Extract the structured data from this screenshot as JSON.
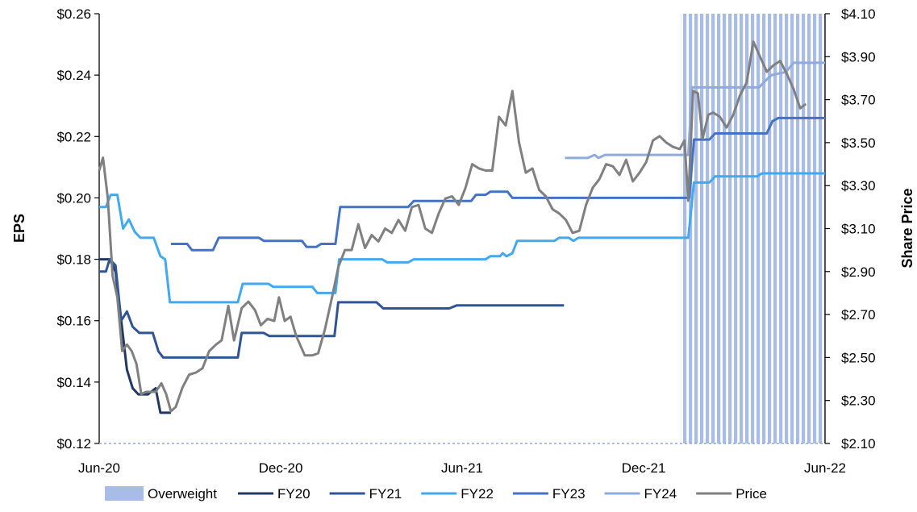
{
  "chart_data": {
    "type": "line",
    "title": "",
    "xlabel": "",
    "ylabel": "EPS",
    "y2label": "Share Price",
    "x_ticks": [
      "Jun-20",
      "Dec-20",
      "Jun-21",
      "Dec-21",
      "Jun-22"
    ],
    "x_range": [
      "2020-06-01",
      "2022-06-30"
    ],
    "ylim": [
      0.12,
      0.26
    ],
    "y_ticks": [
      "$0.12",
      "$0.14",
      "$0.16",
      "$0.18",
      "$0.20",
      "$0.22",
      "$0.24",
      "$0.26"
    ],
    "y2lim": [
      2.1,
      4.1
    ],
    "y2_ticks": [
      "$2.10",
      "$2.30",
      "$2.50",
      "$2.70",
      "$2.90",
      "$3.10",
      "$3.30",
      "$3.50",
      "$3.70",
      "$3.90",
      "$4.10"
    ],
    "grid": false,
    "legend": "bottom",
    "shaded_regions": [
      {
        "name": "Overweight",
        "start": "2022-01-30",
        "end": "2022-06-30",
        "color": "#a9bce6"
      }
    ],
    "series": [
      {
        "name": "FY20",
        "axis": "left",
        "color": "#1f3864",
        "points": [
          [
            "2020-06-01",
            0.18
          ],
          [
            "2020-06-12",
            0.18
          ],
          [
            "2020-06-18",
            0.176
          ],
          [
            "2020-06-24",
            0.16
          ],
          [
            "2020-06-30",
            0.144
          ],
          [
            "2020-07-06",
            0.138
          ],
          [
            "2020-07-12",
            0.136
          ],
          [
            "2020-07-22",
            0.136
          ],
          [
            "2020-07-30",
            0.138
          ],
          [
            "2020-08-04",
            0.13
          ],
          [
            "2020-08-15",
            0.13
          ]
        ]
      },
      {
        "name": "FY21",
        "axis": "left",
        "color": "#2f5597",
        "points": [
          [
            "2020-06-01",
            0.176
          ],
          [
            "2020-06-08",
            0.176
          ],
          [
            "2020-06-12",
            0.18
          ],
          [
            "2020-06-18",
            0.178
          ],
          [
            "2020-06-24",
            0.16
          ],
          [
            "2020-06-30",
            0.163
          ],
          [
            "2020-07-06",
            0.158
          ],
          [
            "2020-07-13",
            0.156
          ],
          [
            "2020-07-27",
            0.156
          ],
          [
            "2020-08-02",
            0.15
          ],
          [
            "2020-08-07",
            0.148
          ],
          [
            "2020-10-24",
            0.148
          ],
          [
            "2020-10-28",
            0.156
          ],
          [
            "2020-11-20",
            0.156
          ],
          [
            "2020-11-26",
            0.155
          ],
          [
            "2021-02-02",
            0.155
          ],
          [
            "2021-02-06",
            0.166
          ],
          [
            "2021-03-18",
            0.166
          ],
          [
            "2021-03-25",
            0.164
          ],
          [
            "2021-06-02",
            0.164
          ],
          [
            "2021-06-10",
            0.165
          ],
          [
            "2021-09-30",
            0.165
          ]
        ]
      },
      {
        "name": "FY22",
        "axis": "left",
        "color": "#41a9f0",
        "points": [
          [
            "2020-06-01",
            0.197
          ],
          [
            "2020-06-08",
            0.197
          ],
          [
            "2020-06-13",
            0.201
          ],
          [
            "2020-06-20",
            0.201
          ],
          [
            "2020-06-26",
            0.19
          ],
          [
            "2020-07-02",
            0.193
          ],
          [
            "2020-07-08",
            0.189
          ],
          [
            "2020-07-14",
            0.187
          ],
          [
            "2020-07-28",
            0.187
          ],
          [
            "2020-08-04",
            0.181
          ],
          [
            "2020-08-09",
            0.18
          ],
          [
            "2020-08-14",
            0.166
          ],
          [
            "2020-10-24",
            0.166
          ],
          [
            "2020-10-29",
            0.172
          ],
          [
            "2020-11-25",
            0.172
          ],
          [
            "2020-11-30",
            0.171
          ],
          [
            "2021-01-10",
            0.171
          ],
          [
            "2021-01-15",
            0.169
          ],
          [
            "2021-02-03",
            0.169
          ],
          [
            "2021-02-07",
            0.18
          ],
          [
            "2021-03-24",
            0.18
          ],
          [
            "2021-03-29",
            0.179
          ],
          [
            "2021-04-20",
            0.179
          ],
          [
            "2021-04-26",
            0.18
          ],
          [
            "2021-07-10",
            0.18
          ],
          [
            "2021-07-15",
            0.181
          ],
          [
            "2021-07-25",
            0.181
          ],
          [
            "2021-07-28",
            0.182
          ],
          [
            "2021-08-01",
            0.181
          ],
          [
            "2021-08-07",
            0.182
          ],
          [
            "2021-08-12",
            0.186
          ],
          [
            "2021-09-20",
            0.186
          ],
          [
            "2021-09-25",
            0.187
          ],
          [
            "2021-10-05",
            0.187
          ],
          [
            "2021-10-10",
            0.186
          ],
          [
            "2021-10-15",
            0.187
          ],
          [
            "2022-02-07",
            0.187
          ],
          [
            "2022-02-13",
            0.205
          ],
          [
            "2022-03-01",
            0.205
          ],
          [
            "2022-03-07",
            0.207
          ],
          [
            "2022-04-20",
            0.207
          ],
          [
            "2022-04-25",
            0.208
          ],
          [
            "2022-06-30",
            0.208
          ]
        ]
      },
      {
        "name": "FY23",
        "axis": "left",
        "color": "#4472c4",
        "points": [
          [
            "2020-08-15",
            0.185
          ],
          [
            "2020-09-01",
            0.185
          ],
          [
            "2020-09-06",
            0.183
          ],
          [
            "2020-09-28",
            0.183
          ],
          [
            "2020-10-04",
            0.187
          ],
          [
            "2020-11-15",
            0.187
          ],
          [
            "2020-11-20",
            0.186
          ],
          [
            "2020-12-30",
            0.186
          ],
          [
            "2021-01-04",
            0.184
          ],
          [
            "2021-01-14",
            0.184
          ],
          [
            "2021-01-19",
            0.185
          ],
          [
            "2021-02-03",
            0.185
          ],
          [
            "2021-02-08",
            0.197
          ],
          [
            "2021-04-20",
            0.197
          ],
          [
            "2021-04-26",
            0.199
          ],
          [
            "2021-06-25",
            0.199
          ],
          [
            "2021-06-30",
            0.201
          ],
          [
            "2021-07-10",
            0.201
          ],
          [
            "2021-07-15",
            0.202
          ],
          [
            "2021-08-02",
            0.202
          ],
          [
            "2021-08-07",
            0.2
          ],
          [
            "2022-02-08",
            0.2
          ],
          [
            "2022-02-13",
            0.219
          ],
          [
            "2022-03-01",
            0.219
          ],
          [
            "2022-03-07",
            0.221
          ],
          [
            "2022-04-30",
            0.221
          ],
          [
            "2022-05-06",
            0.225
          ],
          [
            "2022-05-12",
            0.226
          ],
          [
            "2022-06-30",
            0.226
          ]
        ]
      },
      {
        "name": "FY24",
        "axis": "left",
        "color": "#8faadc",
        "points": [
          [
            "2021-10-01",
            0.213
          ],
          [
            "2021-10-25",
            0.213
          ],
          [
            "2021-11-01",
            0.214
          ],
          [
            "2021-11-05",
            0.213
          ],
          [
            "2021-11-12",
            0.214
          ],
          [
            "2022-02-07",
            0.214
          ],
          [
            "2022-02-11",
            0.236
          ],
          [
            "2022-04-22",
            0.236
          ],
          [
            "2022-04-28",
            0.238
          ],
          [
            "2022-05-05",
            0.24
          ],
          [
            "2022-05-20",
            0.241
          ],
          [
            "2022-05-28",
            0.244
          ],
          [
            "2022-06-30",
            0.244
          ]
        ]
      },
      {
        "name": "Price",
        "axis": "right",
        "color": "#808080",
        "points": [
          [
            "2020-06-01",
            3.37
          ],
          [
            "2020-06-05",
            3.43
          ],
          [
            "2020-06-10",
            3.24
          ],
          [
            "2020-06-15",
            2.88
          ],
          [
            "2020-06-20",
            2.78
          ],
          [
            "2020-06-25",
            2.53
          ],
          [
            "2020-06-30",
            2.56
          ],
          [
            "2020-07-05",
            2.53
          ],
          [
            "2020-07-10",
            2.47
          ],
          [
            "2020-07-15",
            2.33
          ],
          [
            "2020-07-20",
            2.34
          ],
          [
            "2020-07-25",
            2.34
          ],
          [
            "2020-07-30",
            2.34
          ],
          [
            "2020-08-05",
            2.38
          ],
          [
            "2020-08-10",
            2.33
          ],
          [
            "2020-08-15",
            2.25
          ],
          [
            "2020-08-20",
            2.27
          ],
          [
            "2020-08-27",
            2.36
          ],
          [
            "2020-09-03",
            2.42
          ],
          [
            "2020-09-10",
            2.43
          ],
          [
            "2020-09-17",
            2.45
          ],
          [
            "2020-09-24",
            2.53
          ],
          [
            "2020-10-01",
            2.56
          ],
          [
            "2020-10-07",
            2.58
          ],
          [
            "2020-10-14",
            2.74
          ],
          [
            "2020-10-20",
            2.58
          ],
          [
            "2020-10-28",
            2.73
          ],
          [
            "2020-11-04",
            2.76
          ],
          [
            "2020-11-11",
            2.72
          ],
          [
            "2020-11-17",
            2.65
          ],
          [
            "2020-11-24",
            2.68
          ],
          [
            "2020-12-01",
            2.67
          ],
          [
            "2020-12-06",
            2.78
          ],
          [
            "2020-12-12",
            2.67
          ],
          [
            "2020-12-18",
            2.69
          ],
          [
            "2020-12-24",
            2.6
          ],
          [
            "2021-01-02",
            2.51
          ],
          [
            "2021-01-10",
            2.51
          ],
          [
            "2021-01-16",
            2.52
          ],
          [
            "2021-01-23",
            2.63
          ],
          [
            "2021-01-30",
            2.77
          ],
          [
            "2021-02-06",
            2.92
          ],
          [
            "2021-02-13",
            3.0
          ],
          [
            "2021-02-20",
            3.0
          ],
          [
            "2021-02-27",
            3.12
          ],
          [
            "2021-03-06",
            3.01
          ],
          [
            "2021-03-13",
            3.07
          ],
          [
            "2021-03-20",
            3.04
          ],
          [
            "2021-03-27",
            3.1
          ],
          [
            "2021-04-03",
            3.08
          ],
          [
            "2021-04-10",
            3.14
          ],
          [
            "2021-04-17",
            3.09
          ],
          [
            "2021-04-24",
            3.2
          ],
          [
            "2021-05-01",
            3.21
          ],
          [
            "2021-05-08",
            3.1
          ],
          [
            "2021-05-15",
            3.08
          ],
          [
            "2021-05-22",
            3.17
          ],
          [
            "2021-05-29",
            3.24
          ],
          [
            "2021-06-05",
            3.25
          ],
          [
            "2021-06-12",
            3.21
          ],
          [
            "2021-06-19",
            3.29
          ],
          [
            "2021-06-26",
            3.4
          ],
          [
            "2021-07-03",
            3.38
          ],
          [
            "2021-07-10",
            3.37
          ],
          [
            "2021-07-17",
            3.37
          ],
          [
            "2021-07-24",
            3.62
          ],
          [
            "2021-07-31",
            3.58
          ],
          [
            "2021-08-07",
            3.74
          ],
          [
            "2021-08-14",
            3.5
          ],
          [
            "2021-08-21",
            3.36
          ],
          [
            "2021-08-28",
            3.38
          ],
          [
            "2021-09-04",
            3.28
          ],
          [
            "2021-09-11",
            3.25
          ],
          [
            "2021-09-18",
            3.19
          ],
          [
            "2021-09-25",
            3.17
          ],
          [
            "2021-10-02",
            3.14
          ],
          [
            "2021-10-09",
            3.08
          ],
          [
            "2021-10-16",
            3.09
          ],
          [
            "2021-10-23",
            3.21
          ],
          [
            "2021-10-30",
            3.29
          ],
          [
            "2021-11-06",
            3.33
          ],
          [
            "2021-11-13",
            3.4
          ],
          [
            "2021-11-20",
            3.39
          ],
          [
            "2021-11-27",
            3.35
          ],
          [
            "2021-12-04",
            3.42
          ],
          [
            "2021-12-11",
            3.32
          ],
          [
            "2021-12-18",
            3.36
          ],
          [
            "2021-12-25",
            3.41
          ],
          [
            "2022-01-01",
            3.51
          ],
          [
            "2022-01-08",
            3.53
          ],
          [
            "2022-01-15",
            3.5
          ],
          [
            "2022-01-22",
            3.48
          ],
          [
            "2022-01-29",
            3.47
          ],
          [
            "2022-02-03",
            3.51
          ],
          [
            "2022-02-07",
            3.23
          ],
          [
            "2022-02-12",
            3.74
          ],
          [
            "2022-02-17",
            3.73
          ],
          [
            "2022-02-22",
            3.52
          ],
          [
            "2022-02-28",
            3.63
          ],
          [
            "2022-03-05",
            3.64
          ],
          [
            "2022-03-12",
            3.62
          ],
          [
            "2022-03-19",
            3.57
          ],
          [
            "2022-03-26",
            3.63
          ],
          [
            "2022-04-02",
            3.72
          ],
          [
            "2022-04-09",
            3.78
          ],
          [
            "2022-04-16",
            3.97
          ],
          [
            "2022-04-23",
            3.9
          ],
          [
            "2022-04-30",
            3.83
          ],
          [
            "2022-05-07",
            3.86
          ],
          [
            "2022-05-14",
            3.88
          ],
          [
            "2022-05-21",
            3.82
          ],
          [
            "2022-05-28",
            3.75
          ],
          [
            "2022-06-04",
            3.66
          ],
          [
            "2022-06-10",
            3.68
          ]
        ]
      }
    ]
  }
}
